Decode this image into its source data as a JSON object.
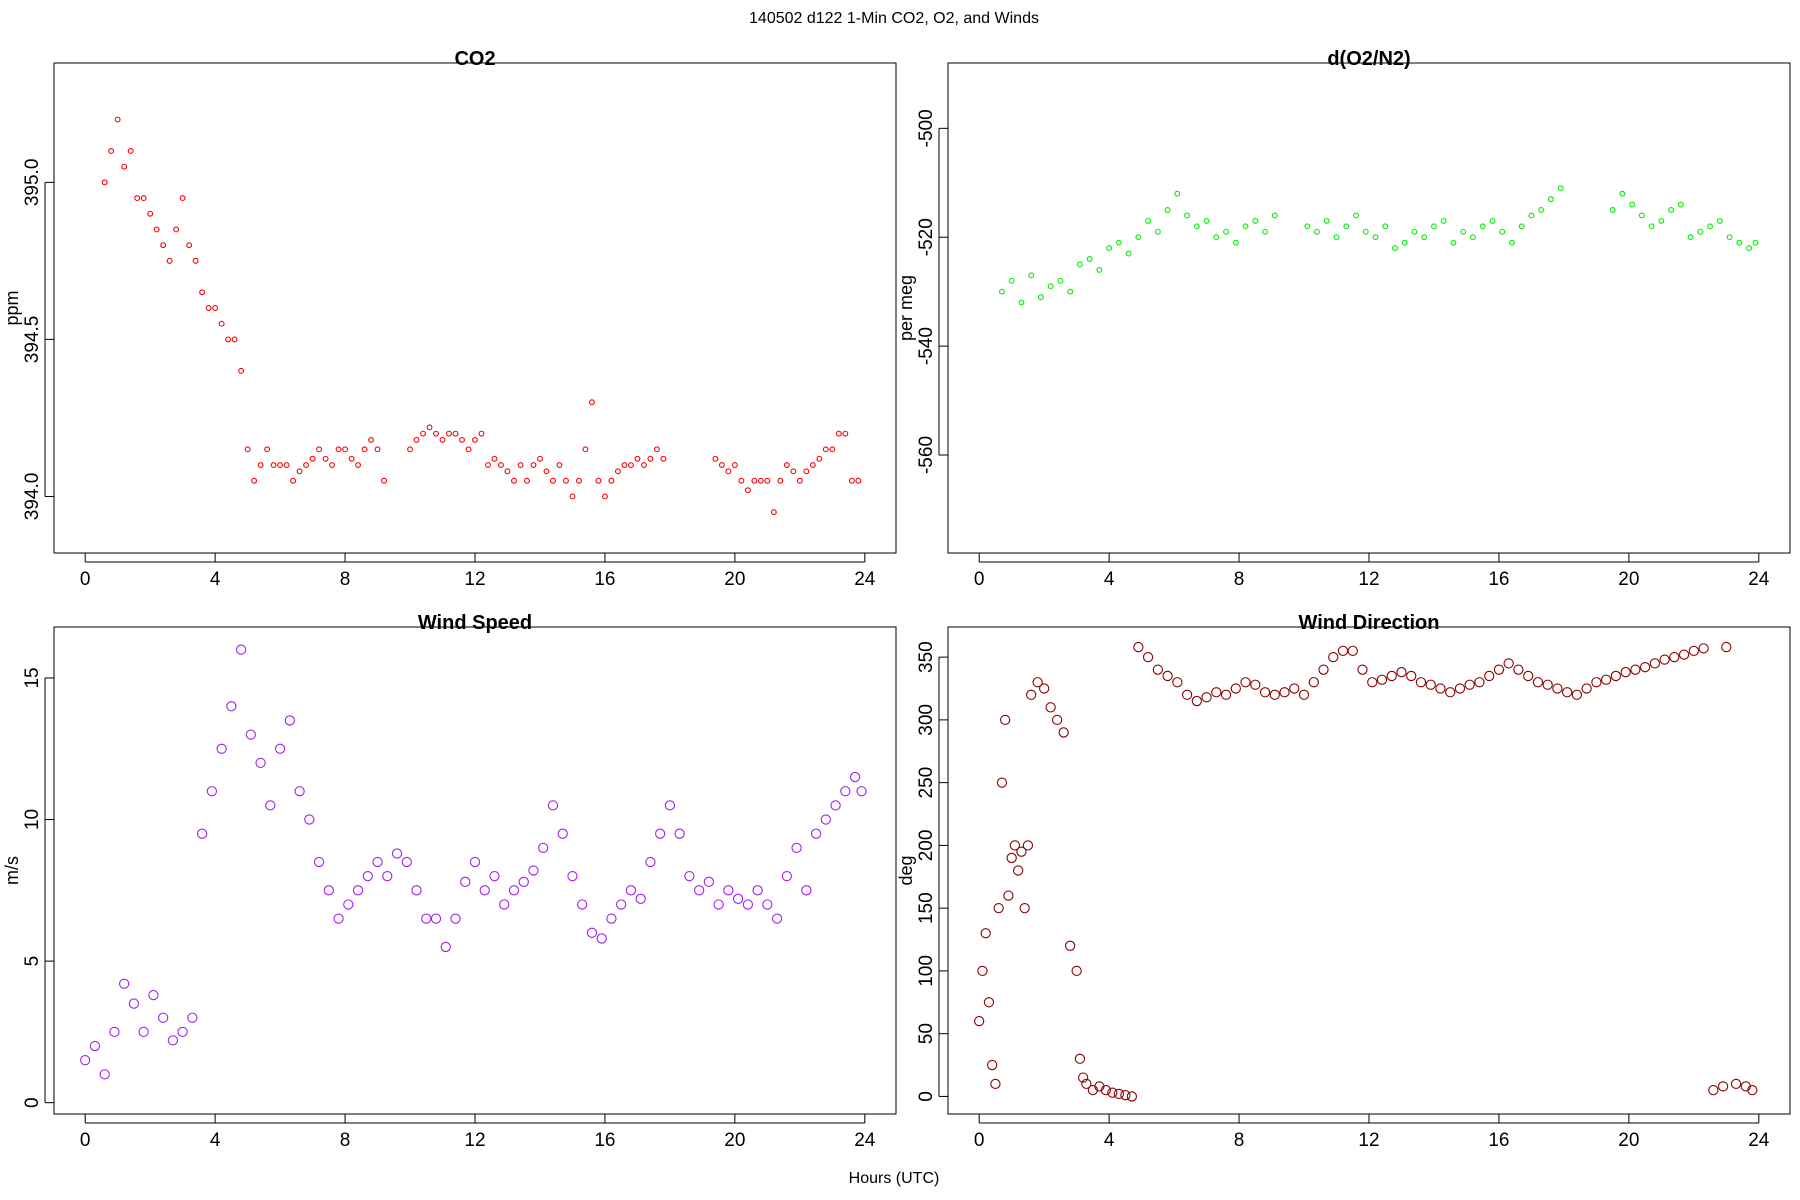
{
  "figure": {
    "title": "140502   d122   1-Min CO2, O2, and Winds",
    "xlabel": "Hours (UTC)"
  },
  "chart_data": [
    {
      "type": "scatter",
      "title": "CO2",
      "ylabel": "ppm",
      "xlim": [
        -0.96,
        24.96
      ],
      "ylim": [
        393.82,
        395.38
      ],
      "xticks": [
        0,
        4,
        8,
        12,
        16,
        20,
        24
      ],
      "yticks": [
        394.0,
        394.5,
        395.0
      ],
      "ytick_labels": [
        "394.0",
        "394.5",
        "395.0"
      ],
      "marker_color": "#ff0000",
      "marker": "small-open-circle",
      "series": [
        {
          "x": [
            0.6,
            0.8,
            1.0,
            1.2,
            1.4,
            1.6,
            1.8,
            2.0,
            2.2,
            2.4,
            2.6,
            2.8,
            3.0,
            3.2,
            3.4,
            3.6,
            3.8,
            4.0,
            4.2,
            4.4,
            4.6,
            4.8,
            5.0,
            5.2,
            5.4,
            5.6,
            5.8,
            6.0,
            6.2,
            6.4,
            6.6,
            6.8,
            7.0,
            7.2,
            7.4,
            7.6,
            7.8,
            8.0,
            8.2,
            8.4,
            8.6,
            8.8,
            9.0,
            9.2,
            10.0,
            10.2,
            10.4,
            10.6,
            10.8,
            11.0,
            11.2,
            11.4,
            11.6,
            11.8,
            12.0,
            12.2,
            12.4,
            12.6,
            12.8,
            13.0,
            13.2,
            13.4,
            13.6,
            13.8,
            14.0,
            14.2,
            14.4,
            14.6,
            14.8,
            15.0,
            15.2,
            15.4,
            15.6,
            15.8,
            16.0,
            16.2,
            16.4,
            16.6,
            16.8,
            17.0,
            17.2,
            17.4,
            17.6,
            17.8,
            19.4,
            19.6,
            19.8,
            20.0,
            20.2,
            20.4,
            20.6,
            20.8,
            21.0,
            21.2,
            21.4,
            21.6,
            21.8,
            22.0,
            22.2,
            22.4,
            22.6,
            22.8,
            23.0,
            23.2,
            23.4,
            23.6,
            23.8
          ],
          "y": [
            395.0,
            395.1,
            395.2,
            395.05,
            395.1,
            394.95,
            394.95,
            394.9,
            394.85,
            394.8,
            394.75,
            394.85,
            394.95,
            394.8,
            394.75,
            394.65,
            394.6,
            394.6,
            394.55,
            394.5,
            394.5,
            394.4,
            394.15,
            394.05,
            394.1,
            394.15,
            394.1,
            394.1,
            394.1,
            394.05,
            394.08,
            394.1,
            394.12,
            394.15,
            394.12,
            394.1,
            394.15,
            394.15,
            394.12,
            394.1,
            394.15,
            394.18,
            394.15,
            394.05,
            394.15,
            394.18,
            394.2,
            394.22,
            394.2,
            394.18,
            394.2,
            394.2,
            394.18,
            394.15,
            394.18,
            394.2,
            394.1,
            394.12,
            394.1,
            394.08,
            394.05,
            394.1,
            394.05,
            394.1,
            394.12,
            394.08,
            394.05,
            394.1,
            394.05,
            394.0,
            394.05,
            394.15,
            394.3,
            394.05,
            394.0,
            394.05,
            394.08,
            394.1,
            394.1,
            394.12,
            394.1,
            394.12,
            394.15,
            394.12,
            394.12,
            394.1,
            394.08,
            394.1,
            394.05,
            394.02,
            394.05,
            394.05,
            394.05,
            393.95,
            394.05,
            394.1,
            394.08,
            394.05,
            394.08,
            394.1,
            394.12,
            394.15,
            394.15,
            394.2,
            394.2,
            394.05,
            394.05
          ]
        }
      ]
    },
    {
      "type": "scatter",
      "title": "d(O2/N2)",
      "ylabel": "per meg",
      "xlim": [
        -0.96,
        24.96
      ],
      "ylim": [
        -578,
        -488
      ],
      "xticks": [
        0,
        4,
        8,
        12,
        16,
        20,
        24
      ],
      "yticks": [
        -560,
        -540,
        -520,
        -500
      ],
      "ytick_labels": [
        "-560",
        "-540",
        "-520",
        "-500"
      ],
      "marker_color": "#00ee00",
      "marker": "small-open-circle",
      "series": [
        {
          "x": [
            0.7,
            1.0,
            1.3,
            1.6,
            1.9,
            2.2,
            2.5,
            2.8,
            3.1,
            3.4,
            3.7,
            4.0,
            4.3,
            4.6,
            4.9,
            5.2,
            5.5,
            5.8,
            6.1,
            6.4,
            6.7,
            7.0,
            7.3,
            7.6,
            7.9,
            8.2,
            8.5,
            8.8,
            9.1,
            10.1,
            10.4,
            10.7,
            11.0,
            11.3,
            11.6,
            11.9,
            12.2,
            12.5,
            12.8,
            13.1,
            13.4,
            13.7,
            14.0,
            14.3,
            14.6,
            14.9,
            15.2,
            15.5,
            15.8,
            16.1,
            16.4,
            16.7,
            17.0,
            17.3,
            17.6,
            17.9,
            19.5,
            19.8,
            20.1,
            20.4,
            20.7,
            21.0,
            21.3,
            21.6,
            21.9,
            22.2,
            22.5,
            22.8,
            23.1,
            23.4,
            23.7,
            23.9
          ],
          "y": [
            -530,
            -528,
            -532,
            -527,
            -531,
            -529,
            -528,
            -530,
            -525,
            -524,
            -526,
            -522,
            -521,
            -523,
            -520,
            -517,
            -519,
            -515,
            -512,
            -516,
            -518,
            -517,
            -520,
            -519,
            -521,
            -518,
            -517,
            -519,
            -516,
            -518,
            -519,
            -517,
            -520,
            -518,
            -516,
            -519,
            -520,
            -518,
            -522,
            -521,
            -519,
            -520,
            -518,
            -517,
            -521,
            -519,
            -520,
            -518,
            -517,
            -519,
            -521,
            -518,
            -516,
            -515,
            -513,
            -511,
            -515,
            -512,
            -514,
            -516,
            -518,
            -517,
            -515,
            -514,
            -520,
            -519,
            -518,
            -517,
            -520,
            -521,
            -522,
            -521
          ]
        }
      ]
    },
    {
      "type": "scatter",
      "title": "Wind Speed",
      "ylabel": "m/s",
      "xlim": [
        -0.96,
        24.96
      ],
      "ylim": [
        -0.4,
        16.8
      ],
      "xticks": [
        0,
        4,
        8,
        12,
        16,
        20,
        24
      ],
      "yticks": [
        0,
        5,
        10,
        15
      ],
      "ytick_labels": [
        "0",
        "5",
        "10",
        "15"
      ],
      "marker_color": "#a020f0",
      "marker": "open-circle",
      "series": [
        {
          "x": [
            0.0,
            0.3,
            0.6,
            0.9,
            1.2,
            1.5,
            1.8,
            2.1,
            2.4,
            2.7,
            3.0,
            3.3,
            3.6,
            3.9,
            4.2,
            4.5,
            4.8,
            5.1,
            5.4,
            5.7,
            6.0,
            6.3,
            6.6,
            6.9,
            7.2,
            7.5,
            7.8,
            8.1,
            8.4,
            8.7,
            9.0,
            9.3,
            9.6,
            9.9,
            10.2,
            10.5,
            10.8,
            11.1,
            11.4,
            11.7,
            12.0,
            12.3,
            12.6,
            12.9,
            13.2,
            13.5,
            13.8,
            14.1,
            14.4,
            14.7,
            15.0,
            15.3,
            15.6,
            15.9,
            16.2,
            16.5,
            16.8,
            17.1,
            17.4,
            17.7,
            18.0,
            18.3,
            18.6,
            18.9,
            19.2,
            19.5,
            19.8,
            20.1,
            20.4,
            20.7,
            21.0,
            21.3,
            21.6,
            21.9,
            22.2,
            22.5,
            22.8,
            23.1,
            23.4,
            23.7,
            23.9
          ],
          "y": [
            1.5,
            2.0,
            1.0,
            2.5,
            4.2,
            3.5,
            2.5,
            3.8,
            3.0,
            2.2,
            2.5,
            3.0,
            9.5,
            11.0,
            12.5,
            14.0,
            16.0,
            13.0,
            12.0,
            10.5,
            12.5,
            13.5,
            11.0,
            10.0,
            8.5,
            7.5,
            6.5,
            7.0,
            7.5,
            8.0,
            8.5,
            8.0,
            8.8,
            8.5,
            7.5,
            6.5,
            6.5,
            5.5,
            6.5,
            7.8,
            8.5,
            7.5,
            8.0,
            7.0,
            7.5,
            7.8,
            8.2,
            9.0,
            10.5,
            9.5,
            8.0,
            7.0,
            6.0,
            5.8,
            6.5,
            7.0,
            7.5,
            7.2,
            8.5,
            9.5,
            10.5,
            9.5,
            8.0,
            7.5,
            7.8,
            7.0,
            7.5,
            7.2,
            7.0,
            7.5,
            7.0,
            6.5,
            8.0,
            9.0,
            7.5,
            9.5,
            10.0,
            10.5,
            11.0,
            11.5,
            11.0
          ]
        }
      ]
    },
    {
      "type": "scatter",
      "title": "Wind Direction",
      "ylabel": "deg",
      "xlim": [
        -0.96,
        24.96
      ],
      "ylim": [
        -14,
        374
      ],
      "xticks": [
        0,
        4,
        8,
        12,
        16,
        20,
        24
      ],
      "yticks": [
        0,
        50,
        100,
        150,
        200,
        250,
        300,
        350
      ],
      "ytick_labels": [
        "0",
        "50",
        "100",
        "150",
        "200",
        "250",
        "300",
        "350"
      ],
      "marker_color": "#8b0000",
      "marker": "open-circle",
      "series": [
        {
          "x": [
            0.0,
            0.1,
            0.2,
            0.3,
            0.4,
            0.5,
            0.6,
            0.7,
            0.8,
            0.9,
            1.0,
            1.1,
            1.2,
            1.3,
            1.4,
            1.5,
            1.6,
            1.8,
            2.0,
            2.2,
            2.4,
            2.6,
            2.8,
            3.0,
            3.1,
            3.2,
            3.3,
            3.5,
            3.7,
            3.9,
            4.1,
            4.3,
            4.5,
            4.7,
            4.9,
            5.2,
            5.5,
            5.8,
            6.1,
            6.4,
            6.7,
            7.0,
            7.3,
            7.6,
            7.9,
            8.2,
            8.5,
            8.8,
            9.1,
            9.4,
            9.7,
            10.0,
            10.3,
            10.6,
            10.9,
            11.2,
            11.5,
            11.8,
            12.1,
            12.4,
            12.7,
            13.0,
            13.3,
            13.6,
            13.9,
            14.2,
            14.5,
            14.8,
            15.1,
            15.4,
            15.7,
            16.0,
            16.3,
            16.6,
            16.9,
            17.2,
            17.5,
            17.8,
            18.1,
            18.4,
            18.7,
            19.0,
            19.3,
            19.6,
            19.9,
            20.2,
            20.5,
            20.8,
            21.1,
            21.4,
            21.7,
            22.0,
            22.3,
            22.6,
            22.9,
            23.0,
            23.3,
            23.6,
            23.8
          ],
          "y": [
            60,
            100,
            130,
            75,
            25,
            10,
            150,
            250,
            300,
            160,
            190,
            200,
            180,
            195,
            150,
            200,
            320,
            330,
            325,
            310,
            300,
            290,
            120,
            100,
            30,
            15,
            10,
            5,
            8,
            5,
            3,
            2,
            1,
            0,
            358,
            350,
            340,
            335,
            330,
            320,
            315,
            318,
            322,
            320,
            325,
            330,
            328,
            322,
            320,
            322,
            325,
            320,
            330,
            340,
            350,
            355,
            355,
            340,
            330,
            332,
            335,
            338,
            335,
            330,
            328,
            325,
            322,
            325,
            328,
            330,
            335,
            340,
            345,
            340,
            335,
            330,
            328,
            325,
            322,
            320,
            325,
            330,
            332,
            335,
            338,
            340,
            342,
            345,
            348,
            350,
            352,
            355,
            357,
            5,
            8,
            358,
            10,
            8,
            5
          ]
        }
      ]
    }
  ]
}
